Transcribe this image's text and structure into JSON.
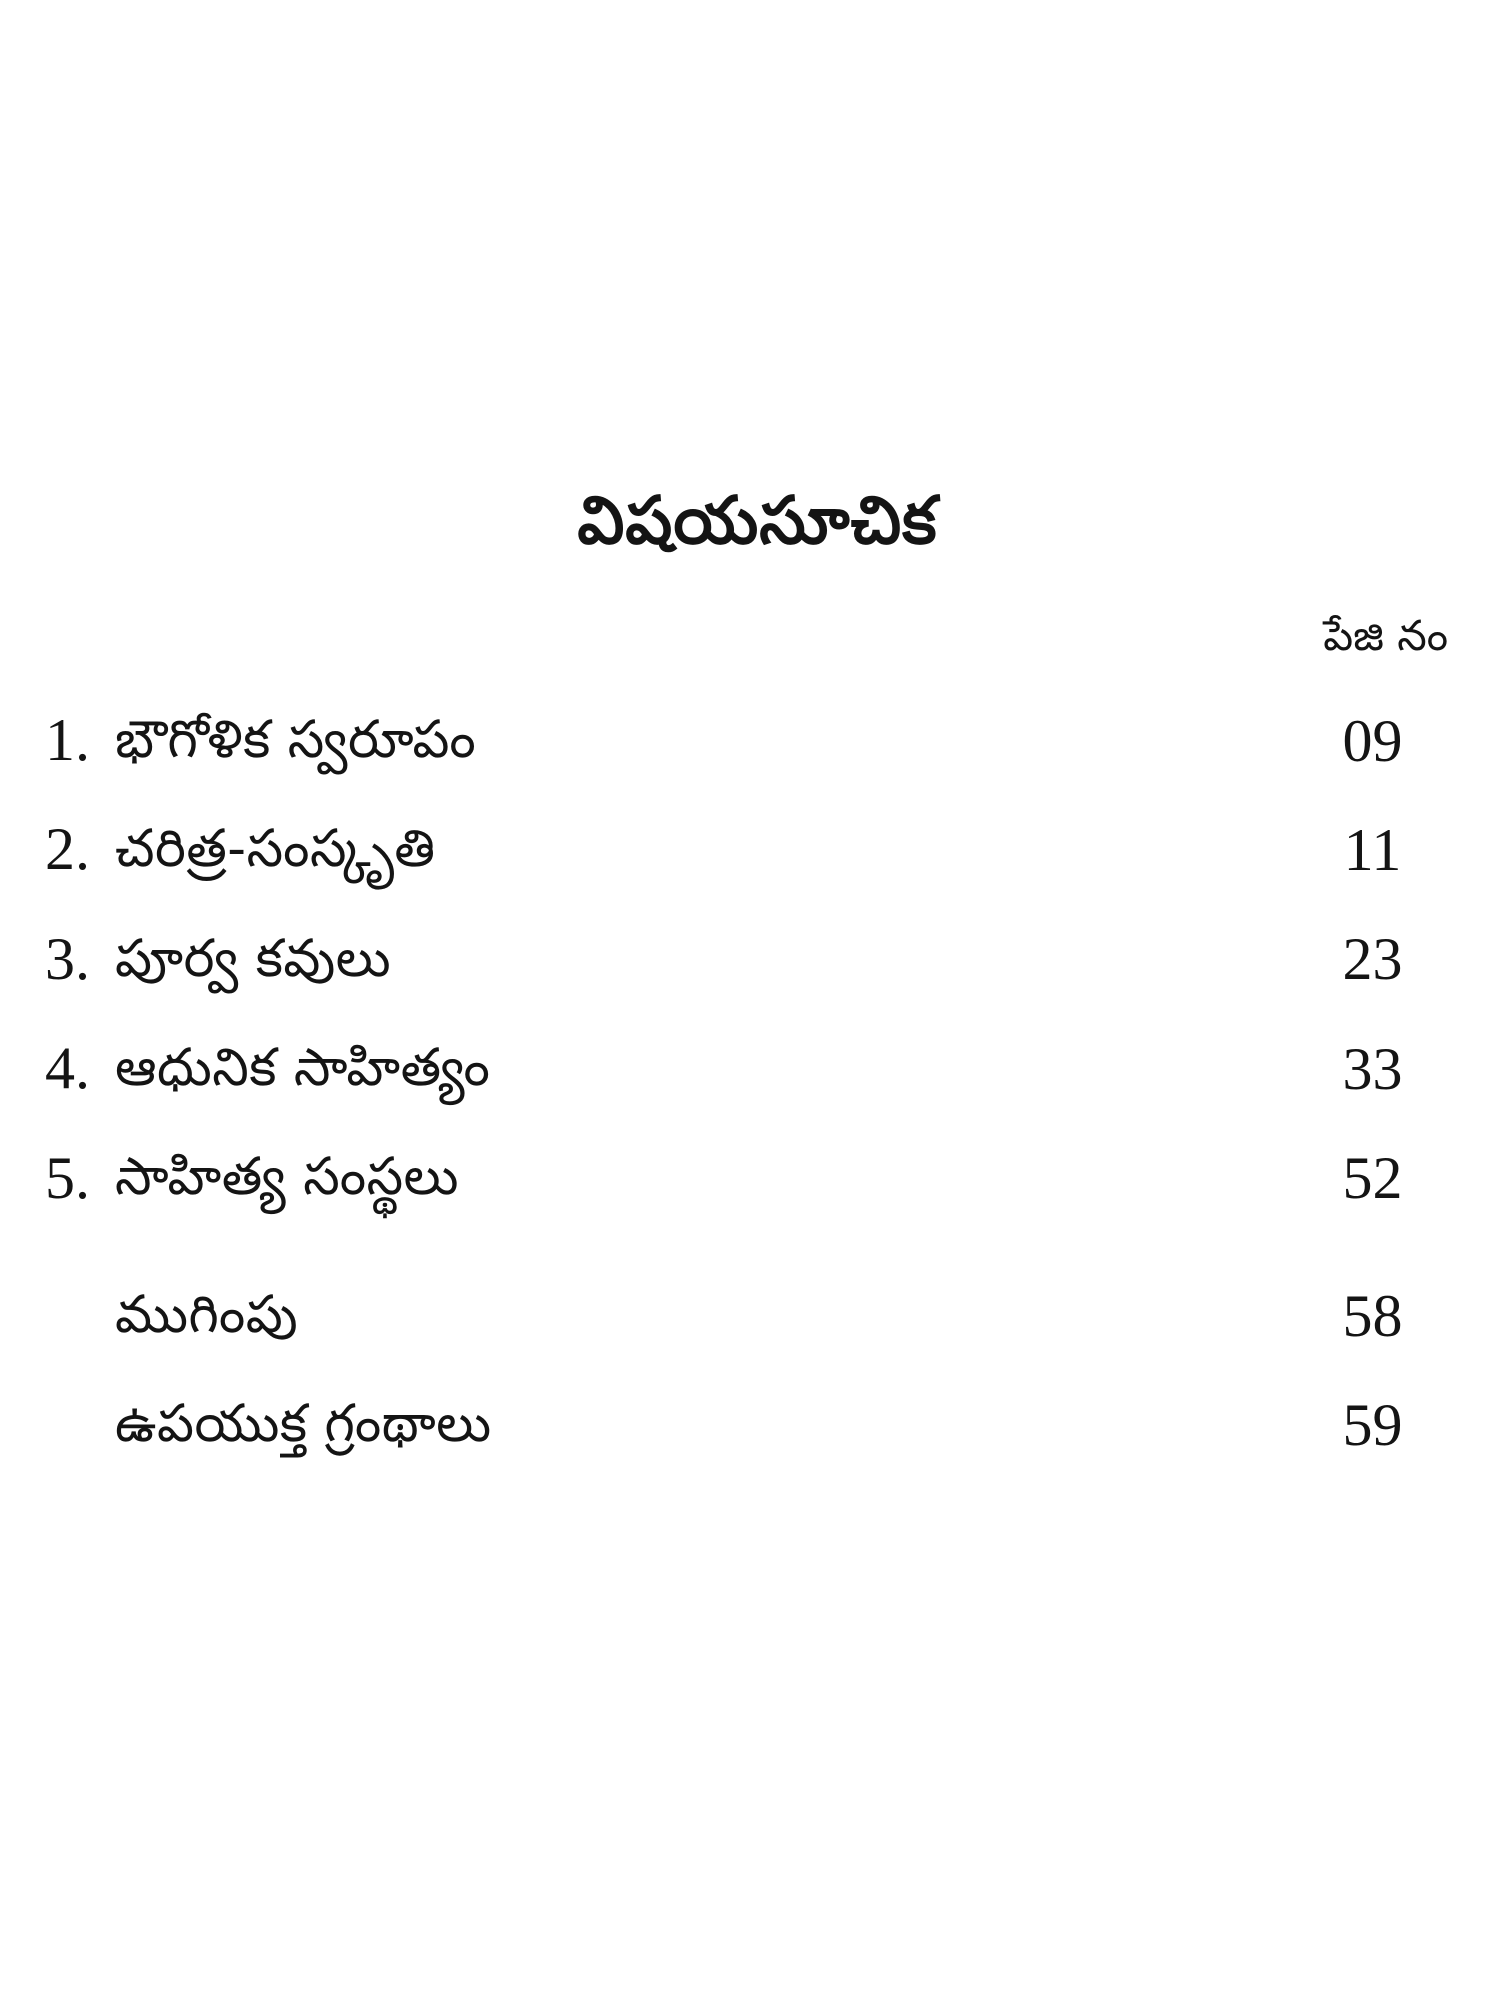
{
  "page": {
    "title": "విషయసూచిక",
    "page_col_header": "పేజి నం",
    "items": [
      {
        "num": "1.",
        "label": "భౌగోళిక స్వరూపం",
        "page": "09"
      },
      {
        "num": "2.",
        "label": "చరిత్ర-సంస్కృతి",
        "page": "11"
      },
      {
        "num": "3.",
        "label": "పూర్వ కవులు",
        "page": "23"
      },
      {
        "num": "4.",
        "label": "ఆధునిక సాహిత్యం",
        "page": "33"
      },
      {
        "num": "5.",
        "label": "సాహిత్య సంస్థలు",
        "page": "52"
      },
      {
        "num": "",
        "label": "ముగింపు",
        "page": "58"
      },
      {
        "num": "",
        "label": "ఉపయుక్త గ్రంథాలు",
        "page": "59"
      }
    ]
  }
}
